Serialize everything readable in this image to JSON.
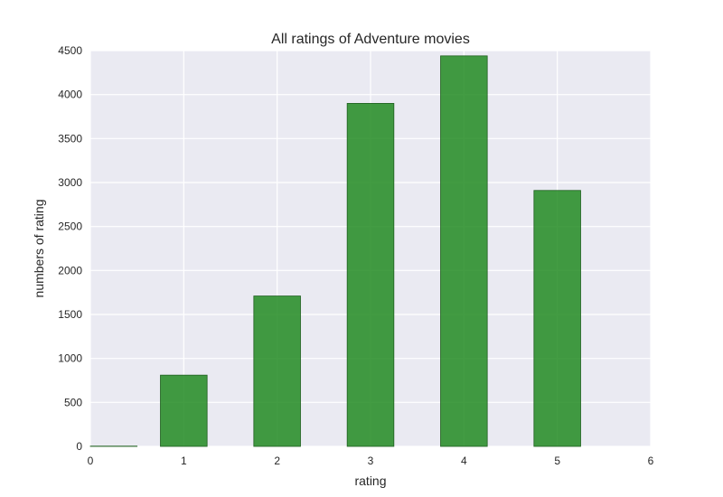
{
  "chart_data": {
    "type": "bar",
    "title": "All ratings of Adventure movies",
    "xlabel": "rating",
    "ylabel": "numbers of rating",
    "x": [
      0.25,
      1,
      2,
      3,
      4,
      5
    ],
    "values": [
      3,
      810,
      1710,
      3900,
      4440,
      2910
    ],
    "bar_width": 0.5,
    "xlim": [
      0,
      6
    ],
    "ylim": [
      0,
      4500
    ],
    "xticks": [
      "0",
      "1",
      "2",
      "3",
      "4",
      "5",
      "6"
    ],
    "yticks": [
      "0",
      "500",
      "1000",
      "1500",
      "2000",
      "2500",
      "3000",
      "3500",
      "4000",
      "4500"
    ],
    "grid": true,
    "colors": {
      "bar_fill": "#228b22",
      "bar_stroke": "#1f5f1f",
      "plot_bg": "#eaeaf2",
      "grid": "#ffffff"
    }
  }
}
